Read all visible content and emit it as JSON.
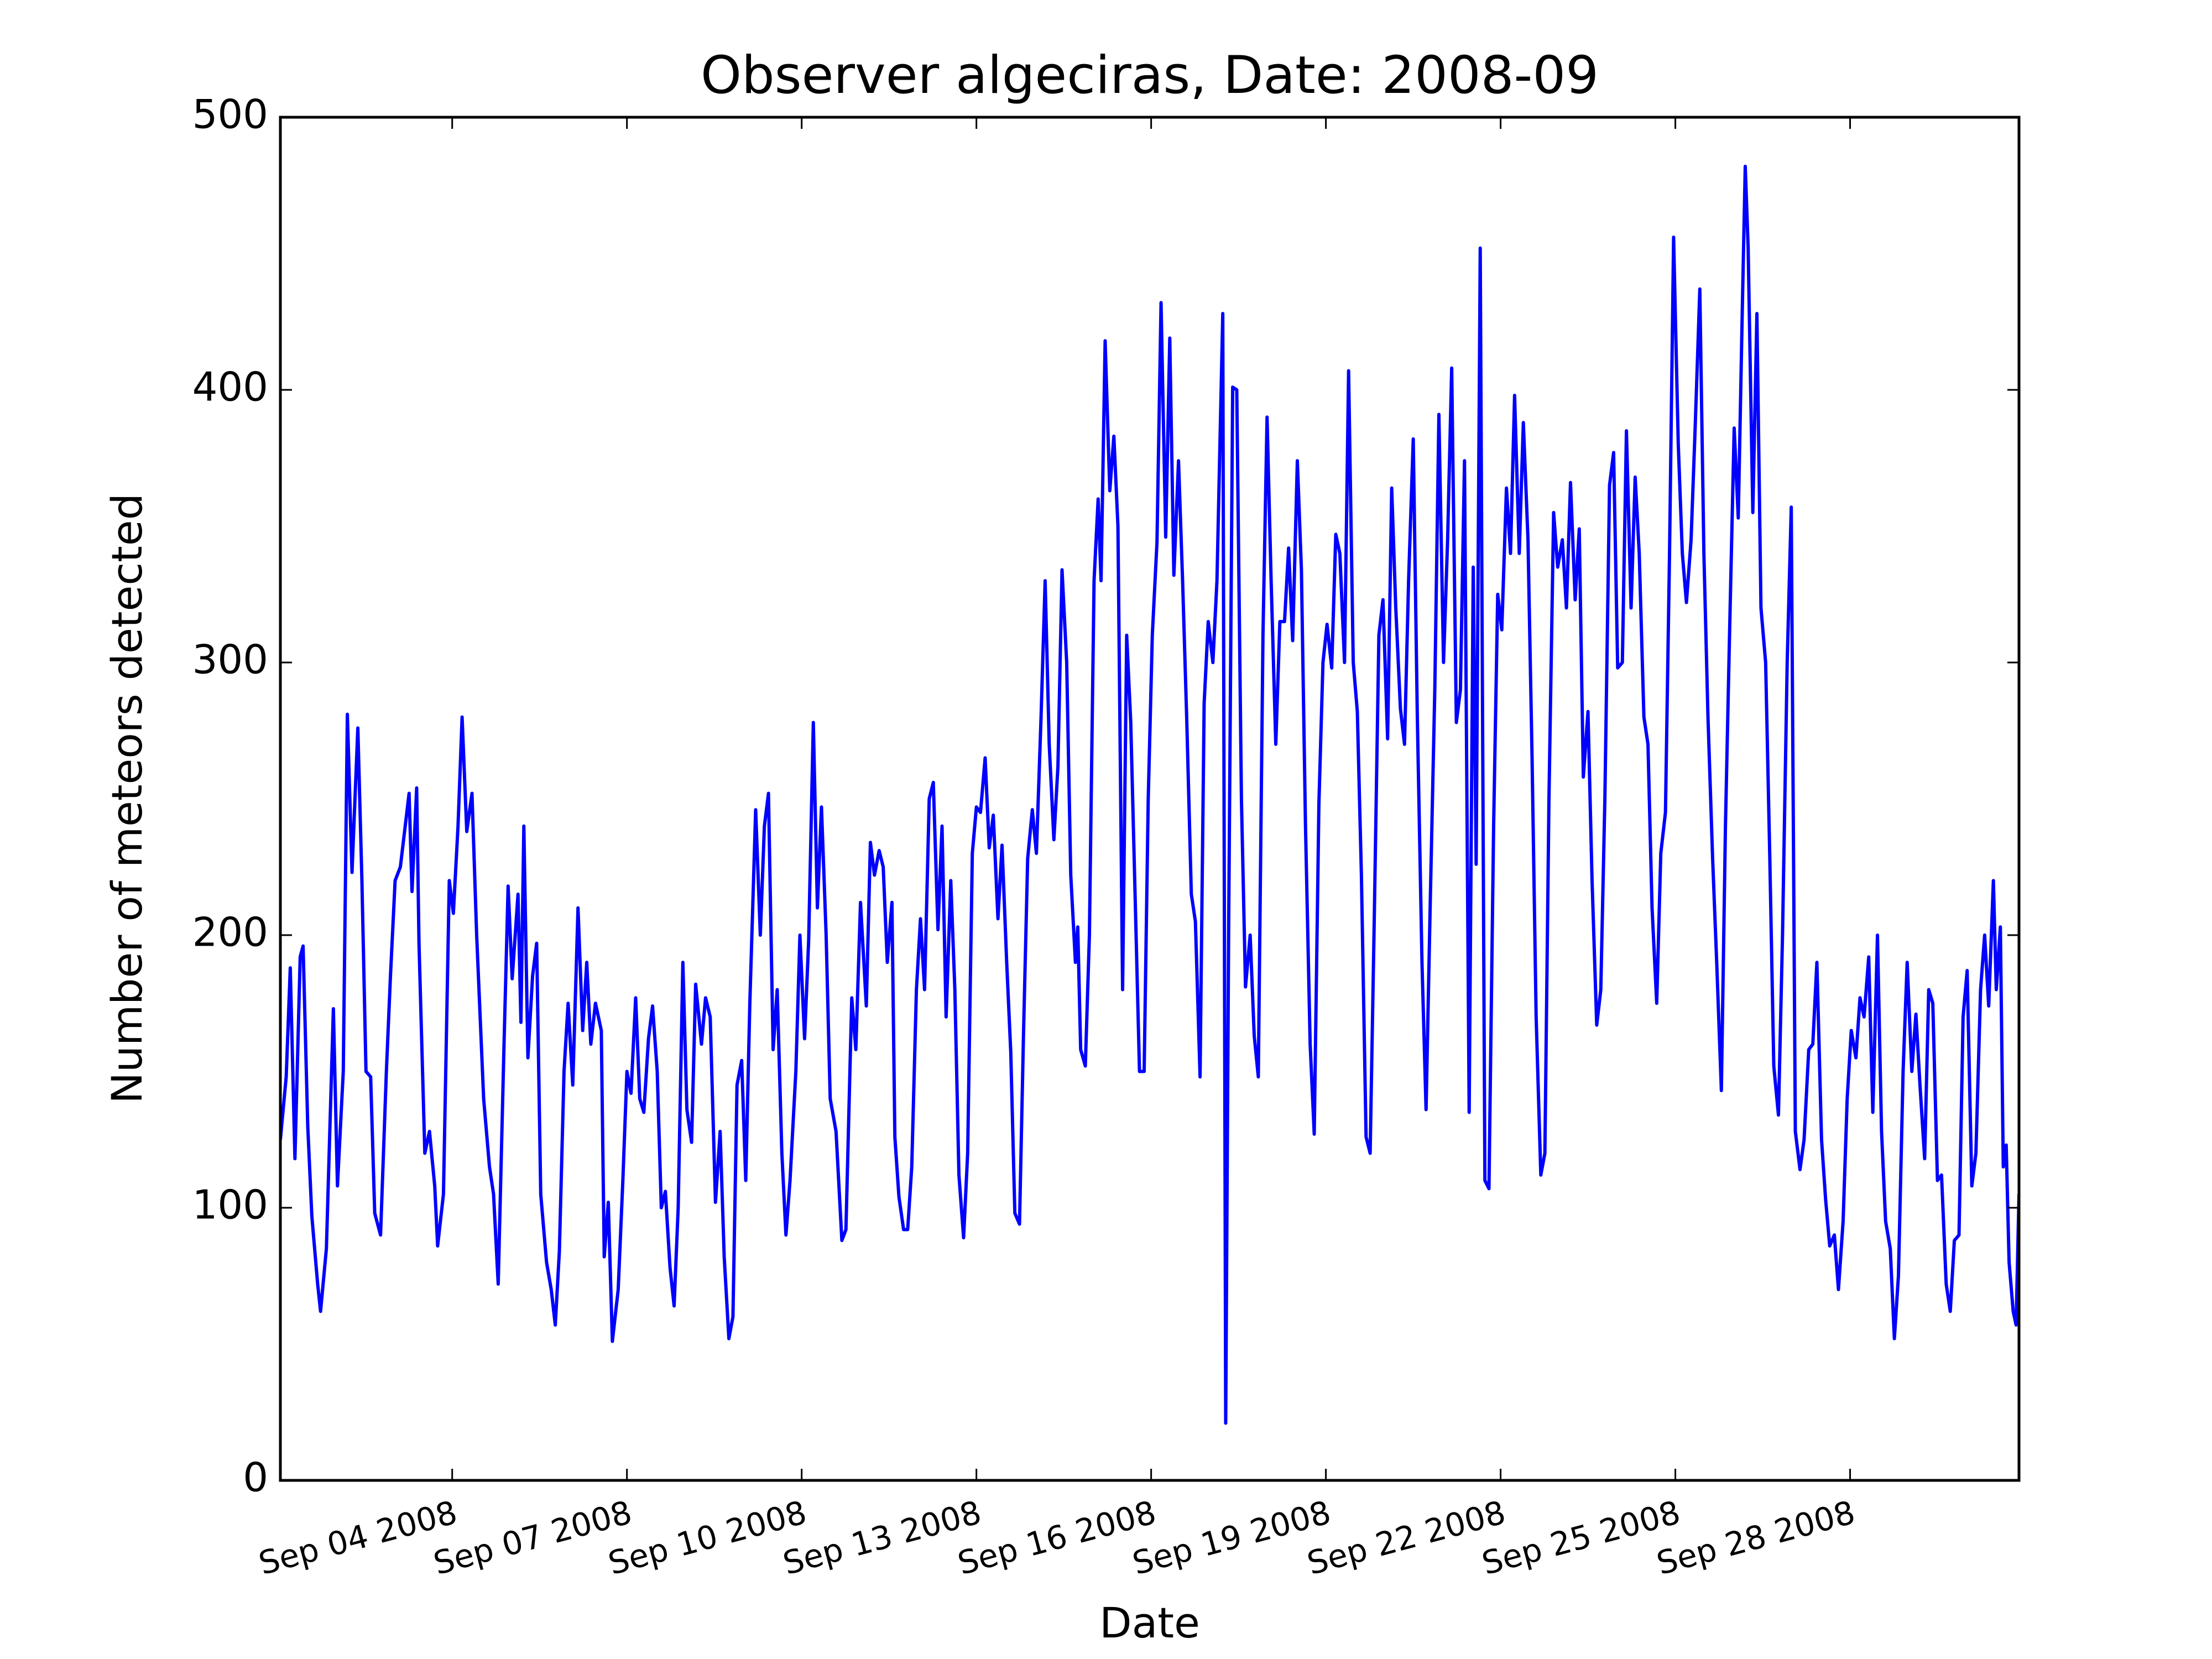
{
  "chart_data": {
    "type": "line",
    "title": "Observer algeciras, Date: 2008-09",
    "x_label": "Date",
    "y_label": "Number of meteors detected",
    "color": "#0000ff",
    "xlim": [
      1.05,
      30.9
    ],
    "ylim": [
      0,
      500
    ],
    "xticks": [
      {
        "value": 4,
        "label": "Sep 04 2008"
      },
      {
        "value": 7,
        "label": "Sep 07 2008"
      },
      {
        "value": 10,
        "label": "Sep 10 2008"
      },
      {
        "value": 13,
        "label": "Sep 13 2008"
      },
      {
        "value": 16,
        "label": "Sep 16 2008"
      },
      {
        "value": 19,
        "label": "Sep 19 2008"
      },
      {
        "value": 22,
        "label": "Sep 22 2008"
      },
      {
        "value": 25,
        "label": "Sep 25 2008"
      },
      {
        "value": 28,
        "label": "Sep 28 2008"
      }
    ],
    "yticks": [
      0,
      100,
      200,
      300,
      400,
      500
    ],
    "x": [
      1.05,
      1.15,
      1.22,
      1.3,
      1.39,
      1.44,
      1.52,
      1.59,
      1.69,
      1.74,
      1.84,
      1.96,
      2.03,
      2.13,
      2.2,
      2.28,
      2.38,
      2.45,
      2.52,
      2.6,
      2.67,
      2.77,
      2.87,
      2.94,
      3.02,
      3.11,
      3.26,
      3.31,
      3.39,
      3.43,
      3.53,
      3.61,
      3.7,
      3.75,
      3.85,
      3.95,
      4.02,
      4.1,
      4.17,
      4.25,
      4.34,
      4.42,
      4.54,
      4.64,
      4.71,
      4.79,
      4.89,
      4.96,
      5.03,
      5.13,
      5.18,
      5.23,
      5.3,
      5.38,
      5.45,
      5.52,
      5.62,
      5.7,
      5.77,
      5.84,
      5.92,
      5.99,
      6.07,
      6.16,
      6.24,
      6.31,
      6.38,
      6.46,
      6.56,
      6.61,
      6.68,
      6.75,
      6.85,
      6.93,
      7.0,
      7.07,
      7.15,
      7.22,
      7.29,
      7.37,
      7.44,
      7.52,
      7.59,
      7.66,
      7.74,
      7.81,
      7.88,
      7.96,
      8.03,
      8.11,
      8.18,
      8.28,
      8.35,
      8.43,
      8.52,
      8.6,
      8.67,
      8.75,
      8.82,
      8.89,
      8.97,
      9.04,
      9.11,
      9.21,
      9.29,
      9.36,
      9.43,
      9.51,
      9.58,
      9.66,
      9.73,
      9.8,
      9.9,
      9.97,
      10.05,
      10.12,
      10.2,
      10.27,
      10.34,
      10.42,
      10.49,
      10.59,
      10.69,
      10.76,
      10.86,
      10.93,
      11.01,
      11.11,
      11.18,
      11.25,
      11.33,
      11.4,
      11.47,
      11.55,
      11.6,
      11.67,
      11.75,
      11.82,
      11.89,
      11.97,
      12.04,
      12.11,
      12.19,
      12.26,
      12.34,
      12.41,
      12.48,
      12.56,
      12.63,
      12.7,
      12.78,
      12.85,
      12.93,
      13.0,
      13.07,
      13.15,
      13.22,
      13.29,
      13.37,
      13.44,
      13.52,
      13.59,
      13.66,
      13.74,
      13.81,
      13.88,
      13.96,
      14.03,
      14.11,
      14.18,
      14.25,
      14.33,
      14.4,
      14.47,
      14.55,
      14.62,
      14.7,
      14.74,
      14.79,
      14.87,
      14.94,
      15.02,
      15.09,
      15.14,
      15.21,
      15.29,
      15.36,
      15.43,
      15.51,
      15.58,
      15.65,
      15.73,
      15.8,
      15.88,
      15.95,
      16.02,
      16.1,
      16.17,
      16.25,
      16.32,
      16.39,
      16.47,
      16.54,
      16.61,
      16.69,
      16.76,
      16.84,
      16.91,
      16.98,
      17.06,
      17.13,
      17.23,
      17.28,
      17.33,
      17.4,
      17.47,
      17.55,
      17.62,
      17.7,
      17.77,
      17.84,
      17.92,
      17.99,
      18.06,
      18.14,
      18.21,
      18.29,
      18.36,
      18.43,
      18.51,
      18.58,
      18.65,
      18.73,
      18.8,
      18.88,
      18.95,
      19.02,
      19.1,
      19.17,
      19.24,
      19.32,
      19.39,
      19.47,
      19.54,
      19.61,
      19.69,
      19.76,
      19.83,
      19.91,
      19.98,
      20.06,
      20.13,
      20.2,
      20.28,
      20.35,
      20.42,
      20.5,
      20.57,
      20.65,
      20.72,
      20.79,
      20.87,
      20.94,
      21.02,
      21.09,
      21.16,
      21.24,
      21.31,
      21.38,
      21.46,
      21.53,
      21.58,
      21.65,
      21.73,
      21.8,
      21.88,
      21.95,
      22.02,
      22.1,
      22.17,
      22.24,
      22.32,
      22.39,
      22.47,
      22.54,
      22.61,
      22.69,
      22.76,
      22.83,
      22.91,
      22.98,
      23.06,
      23.13,
      23.2,
      23.28,
      23.35,
      23.42,
      23.5,
      23.57,
      23.65,
      23.72,
      23.79,
      23.87,
      23.94,
      24.01,
      24.09,
      24.16,
      24.24,
      24.31,
      24.38,
      24.46,
      24.53,
      24.6,
      24.68,
      24.75,
      24.83,
      24.9,
      24.97,
      25.05,
      25.12,
      25.19,
      25.27,
      25.34,
      25.42,
      25.49,
      25.56,
      25.64,
      25.71,
      25.79,
      25.86,
      25.93,
      26.01,
      26.08,
      26.15,
      26.2,
      26.25,
      26.33,
      26.4,
      26.47,
      26.55,
      26.62,
      26.69,
      26.77,
      26.84,
      26.92,
      26.99,
      27.06,
      27.14,
      27.21,
      27.29,
      27.36,
      27.43,
      27.51,
      27.58,
      27.65,
      27.73,
      27.8,
      27.88,
      27.95,
      28.02,
      28.1,
      28.17,
      28.24,
      28.32,
      28.39,
      28.47,
      28.54,
      28.61,
      28.69,
      28.76,
      28.83,
      28.91,
      28.98,
      29.06,
      29.13,
      29.2,
      29.28,
      29.35,
      29.42,
      29.5,
      29.57,
      29.65,
      29.72,
      29.79,
      29.87,
      29.94,
      30.01,
      30.09,
      30.16,
      30.24,
      30.31,
      30.38,
      30.46,
      30.51,
      30.58,
      30.63,
      30.68,
      30.73,
      30.8,
      30.85,
      30.9
    ],
    "values": [
      125,
      148,
      188,
      118,
      192,
      196,
      130,
      97,
      72,
      62,
      85,
      173,
      108,
      150,
      281,
      223,
      276,
      220,
      150,
      148,
      98,
      90,
      150,
      185,
      220,
      225,
      252,
      216,
      254,
      197,
      120,
      128,
      108,
      86,
      105,
      220,
      208,
      240,
      280,
      238,
      252,
      200,
      140,
      115,
      105,
      72,
      160,
      218,
      184,
      215,
      168,
      240,
      155,
      185,
      197,
      105,
      80,
      70,
      57,
      84,
      150,
      175,
      145,
      210,
      165,
      190,
      160,
      175,
      165,
      82,
      102,
      51,
      70,
      110,
      150,
      142,
      177,
      140,
      135,
      162,
      174,
      150,
      100,
      106,
      78,
      64,
      100,
      190,
      136,
      124,
      182,
      160,
      177,
      170,
      102,
      128,
      82,
      52,
      60,
      145,
      154,
      110,
      175,
      246,
      200,
      240,
      252,
      158,
      180,
      120,
      90,
      110,
      150,
      200,
      162,
      198,
      278,
      210,
      247,
      200,
      140,
      128,
      88,
      92,
      177,
      158,
      212,
      174,
      234,
      222,
      231,
      225,
      190,
      212,
      126,
      104,
      92,
      92,
      115,
      180,
      206,
      180,
      250,
      256,
      202,
      240,
      170,
      220,
      180,
      112,
      89,
      120,
      230,
      247,
      245,
      265,
      232,
      244,
      206,
      233,
      190,
      157,
      98,
      94,
      165,
      228,
      246,
      230,
      280,
      330,
      270,
      235,
      262,
      334,
      300,
      222,
      190,
      203,
      158,
      152,
      200,
      330,
      360,
      330,
      418,
      363,
      383,
      350,
      180,
      310,
      278,
      210,
      150,
      150,
      250,
      310,
      344,
      432,
      346,
      419,
      332,
      374,
      330,
      280,
      215,
      205,
      148,
      285,
      315,
      300,
      330,
      428,
      21,
      200,
      401,
      400,
      250,
      181,
      200,
      163,
      148,
      310,
      390,
      330,
      270,
      315,
      315,
      342,
      308,
      374,
      334,
      240,
      160,
      127,
      248,
      300,
      314,
      298,
      347,
      340,
      300,
      407,
      300,
      282,
      222,
      126,
      120,
      205,
      310,
      323,
      272,
      364,
      320,
      283,
      270,
      330,
      382,
      280,
      190,
      136,
      210,
      290,
      391,
      300,
      345,
      408,
      278,
      290,
      374,
      135,
      335,
      226,
      452,
      110,
      107,
      240,
      325,
      312,
      364,
      340,
      398,
      340,
      388,
      345,
      265,
      170,
      112,
      120,
      250,
      355,
      335,
      345,
      320,
      366,
      323,
      349,
      258,
      282,
      220,
      167,
      180,
      250,
      365,
      377,
      298,
      300,
      385,
      320,
      368,
      340,
      280,
      270,
      210,
      175,
      230,
      245,
      340,
      456,
      380,
      340,
      322,
      345,
      386,
      437,
      340,
      280,
      228,
      190,
      143,
      240,
      310,
      386,
      353,
      430,
      482,
      452,
      355,
      428,
      320,
      300,
      230,
      152,
      134,
      200,
      300,
      357,
      128,
      114,
      125,
      158,
      160,
      190,
      125,
      103,
      86,
      90,
      70,
      95,
      140,
      165,
      155,
      177,
      170,
      192,
      135,
      200,
      128,
      95,
      85,
      52,
      75,
      150,
      190,
      150,
      171,
      145,
      118,
      180,
      175,
      110,
      112,
      72,
      62,
      88,
      90,
      170,
      187,
      108,
      120,
      180,
      200,
      174,
      220,
      180,
      203,
      115,
      123,
      80,
      62,
      57,
      105
    ]
  }
}
